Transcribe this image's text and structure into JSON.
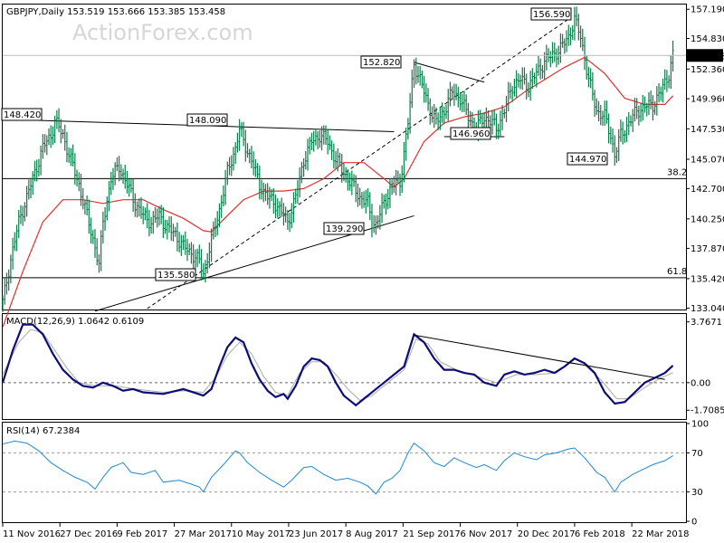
{
  "chart_data": [
    {
      "type": "candlestick",
      "symbol_line": "GBPJPY,Daily  153.519 153.666 153.385 153.458",
      "watermark": "ActionForex.com",
      "ylim": [
        133.0,
        157.5
      ],
      "y_ticks": [
        "157.190",
        "154.830",
        "152.360",
        "149.960",
        "147.530",
        "145.070",
        "142.700",
        "140.250",
        "137.870",
        "135.420",
        "133.040"
      ],
      "last_price": "153.458",
      "x_ticks": [
        "11 Nov 2016",
        "27 Dec 2016",
        "9 Feb 2017",
        "27 Mar 2017",
        "10 May 2017",
        "23 Jun 2017",
        "8 Aug 2017",
        "21 Sep 2017",
        "6 Nov 2017",
        "20 Dec 2017",
        "6 Feb 2018",
        "22 Mar 2018"
      ],
      "annotations": [
        "148.420",
        "148.090",
        "135.580",
        "139.290",
        "152.820",
        "146.960",
        "156.590",
        "144.970"
      ],
      "fib_levels": [
        {
          "label": "38.2",
          "value": 143.5
        },
        {
          "label": "61.8",
          "value": 135.5
        }
      ],
      "close_path": [
        [
          0,
          133.5
        ],
        [
          4,
          137
        ],
        [
          8,
          140
        ],
        [
          12,
          142
        ],
        [
          16,
          144
        ],
        [
          20,
          146
        ],
        [
          24,
          147
        ],
        [
          26,
          148.2
        ],
        [
          30,
          147
        ],
        [
          34,
          145
        ],
        [
          38,
          143
        ],
        [
          42,
          140.5
        ],
        [
          46,
          138
        ],
        [
          48,
          136.5
        ],
        [
          50,
          140
        ],
        [
          54,
          143.5
        ],
        [
          58,
          144.5
        ],
        [
          62,
          143
        ],
        [
          66,
          141.5
        ],
        [
          70,
          140.5
        ],
        [
          74,
          140
        ],
        [
          78,
          140.5
        ],
        [
          82,
          139.5
        ],
        [
          86,
          139
        ],
        [
          90,
          138
        ],
        [
          94,
          137.5
        ],
        [
          98,
          136.8
        ],
        [
          100,
          135.8
        ],
        [
          104,
          138.5
        ],
        [
          108,
          141
        ],
        [
          112,
          144
        ],
        [
          116,
          146
        ],
        [
          118,
          147.5
        ],
        [
          120,
          146.5
        ],
        [
          124,
          145
        ],
        [
          128,
          143
        ],
        [
          132,
          142
        ],
        [
          136,
          141.5
        ],
        [
          140,
          140.5
        ],
        [
          142,
          140
        ],
        [
          146,
          142
        ],
        [
          150,
          145
        ],
        [
          154,
          146.5
        ],
        [
          158,
          147
        ],
        [
          162,
          146.5
        ],
        [
          166,
          145
        ],
        [
          170,
          144
        ],
        [
          174,
          143
        ],
        [
          178,
          142
        ],
        [
          182,
          141.5
        ],
        [
          184,
          140
        ],
        [
          186,
          139.8
        ],
        [
          190,
          141.5
        ],
        [
          194,
          143
        ],
        [
          198,
          143.2
        ],
        [
          202,
          148
        ],
        [
          205,
          152.8
        ],
        [
          208,
          151.5
        ],
        [
          212,
          149.5
        ],
        [
          216,
          148
        ],
        [
          220,
          149
        ],
        [
          224,
          150.5
        ],
        [
          228,
          150
        ],
        [
          232,
          148.5
        ],
        [
          236,
          147.5
        ],
        [
          240,
          148.5
        ],
        [
          244,
          148
        ],
        [
          246,
          147.5
        ],
        [
          250,
          149
        ],
        [
          254,
          151
        ],
        [
          258,
          151.5
        ],
        [
          262,
          151
        ],
        [
          266,
          152
        ],
        [
          270,
          153
        ],
        [
          274,
          153.5
        ],
        [
          278,
          154
        ],
        [
          282,
          155
        ],
        [
          285,
          156.3
        ],
        [
          288,
          155
        ],
        [
          292,
          151.5
        ],
        [
          296,
          149
        ],
        [
          300,
          148.5
        ],
        [
          303,
          147
        ],
        [
          305,
          145.4
        ],
        [
          308,
          147
        ],
        [
          312,
          148
        ],
        [
          316,
          149
        ],
        [
          320,
          149.3
        ],
        [
          324,
          149.5
        ],
        [
          328,
          150.5
        ],
        [
          332,
          152
        ],
        [
          334,
          153.46
        ]
      ],
      "ma_path": [
        [
          0,
          131.5
        ],
        [
          10,
          136
        ],
        [
          20,
          140
        ],
        [
          30,
          141.8
        ],
        [
          40,
          141.8
        ],
        [
          50,
          141.5
        ],
        [
          60,
          141.8
        ],
        [
          70,
          141.8
        ],
        [
          80,
          141
        ],
        [
          90,
          140.3
        ],
        [
          100,
          139.3
        ],
        [
          104,
          139.2
        ],
        [
          110,
          140.2
        ],
        [
          120,
          141.8
        ],
        [
          130,
          142.5
        ],
        [
          140,
          142.5
        ],
        [
          150,
          142.7
        ],
        [
          160,
          143.5
        ],
        [
          170,
          144.8
        ],
        [
          180,
          144.8
        ],
        [
          190,
          143.5
        ],
        [
          195,
          142.8
        ],
        [
          200,
          143.5
        ],
        [
          210,
          146.5
        ],
        [
          220,
          148
        ],
        [
          230,
          148.5
        ],
        [
          240,
          148.8
        ],
        [
          250,
          149.3
        ],
        [
          260,
          150.5
        ],
        [
          270,
          151.5
        ],
        [
          280,
          152.5
        ],
        [
          290,
          153.3
        ],
        [
          300,
          152
        ],
        [
          310,
          150
        ],
        [
          320,
          149.5
        ],
        [
          330,
          149.5
        ],
        [
          334,
          150.2
        ]
      ],
      "trendlines": [
        {
          "from": [
            46,
            132.8
          ],
          "to": [
            205,
            140.5
          ],
          "style": "solid"
        },
        {
          "from": [
            0,
            148.3
          ],
          "to": [
            195,
            147.3
          ],
          "style": "solid"
        },
        {
          "from": [
            205,
            152.9
          ],
          "to": [
            240,
            151.3
          ],
          "style": "solid"
        },
        {
          "from": [
            220,
            146.9
          ],
          "to": [
            250,
            146.9
          ],
          "style": "solid"
        },
        {
          "from": [
            72,
            133
          ],
          "to": [
            282,
            156.4
          ],
          "style": "dashed"
        }
      ]
    },
    {
      "type": "line",
      "title": "MACD(12,26,9) 1.0642 0.6109",
      "ylim": [
        -2.2,
        4.2
      ],
      "y_ticks": [
        "3.7671",
        "0.00",
        "-1.7085"
      ],
      "macd_path": [
        [
          0,
          0
        ],
        [
          5,
          2
        ],
        [
          10,
          3.6
        ],
        [
          15,
          3.6
        ],
        [
          20,
          3.0
        ],
        [
          25,
          1.8
        ],
        [
          30,
          0.8
        ],
        [
          35,
          0.2
        ],
        [
          40,
          -0.2
        ],
        [
          45,
          -0.3
        ],
        [
          50,
          0
        ],
        [
          55,
          -0.2
        ],
        [
          60,
          -0.5
        ],
        [
          65,
          -0.4
        ],
        [
          70,
          -0.6
        ],
        [
          80,
          -0.7
        ],
        [
          90,
          -0.4
        ],
        [
          100,
          -0.8
        ],
        [
          104,
          -0.4
        ],
        [
          108,
          1
        ],
        [
          112,
          2.2
        ],
        [
          116,
          2.8
        ],
        [
          120,
          2.5
        ],
        [
          124,
          1.2
        ],
        [
          128,
          0.2
        ],
        [
          132,
          -0.5
        ],
        [
          136,
          -0.9
        ],
        [
          140,
          -0.7
        ],
        [
          142,
          -1.0
        ],
        [
          146,
          -0.2
        ],
        [
          150,
          1.0
        ],
        [
          154,
          1.5
        ],
        [
          158,
          1.4
        ],
        [
          162,
          1.0
        ],
        [
          166,
          0
        ],
        [
          170,
          -0.8
        ],
        [
          176,
          -1.4
        ],
        [
          180,
          -1.0
        ],
        [
          185,
          -0.5
        ],
        [
          190,
          0
        ],
        [
          195,
          0.5
        ],
        [
          200,
          1
        ],
        [
          205,
          3.0
        ],
        [
          210,
          2.5
        ],
        [
          215,
          1.5
        ],
        [
          220,
          0.8
        ],
        [
          225,
          0.8
        ],
        [
          230,
          0.6
        ],
        [
          235,
          0.5
        ],
        [
          240,
          0
        ],
        [
          246,
          -0.2
        ],
        [
          250,
          0.5
        ],
        [
          255,
          0.7
        ],
        [
          260,
          0.5
        ],
        [
          265,
          0.6
        ],
        [
          270,
          0.8
        ],
        [
          275,
          0.6
        ],
        [
          280,
          1.0
        ],
        [
          285,
          1.5
        ],
        [
          290,
          1.2
        ],
        [
          295,
          0.6
        ],
        [
          300,
          -0.6
        ],
        [
          305,
          -1.3
        ],
        [
          310,
          -1.2
        ],
        [
          315,
          -0.6
        ],
        [
          320,
          0
        ],
        [
          325,
          0.3
        ],
        [
          330,
          0.6
        ],
        [
          334,
          1.06
        ]
      ],
      "signal_path": [
        [
          0,
          0.5
        ],
        [
          8,
          2.5
        ],
        [
          14,
          3.3
        ],
        [
          20,
          3.1
        ],
        [
          26,
          2.0
        ],
        [
          32,
          0.9
        ],
        [
          38,
          0
        ],
        [
          46,
          -0.2
        ],
        [
          56,
          -0.2
        ],
        [
          66,
          -0.4
        ],
        [
          80,
          -0.6
        ],
        [
          90,
          -0.5
        ],
        [
          100,
          -0.6
        ],
        [
          106,
          0.3
        ],
        [
          112,
          1.7
        ],
        [
          118,
          2.5
        ],
        [
          124,
          1.8
        ],
        [
          130,
          0.4
        ],
        [
          136,
          -0.6
        ],
        [
          142,
          -0.8
        ],
        [
          148,
          0.6
        ],
        [
          154,
          1.3
        ],
        [
          160,
          1.3
        ],
        [
          166,
          0.5
        ],
        [
          172,
          -0.4
        ],
        [
          178,
          -1.1
        ],
        [
          184,
          -0.8
        ],
        [
          192,
          0
        ],
        [
          200,
          0.8
        ],
        [
          206,
          2.7
        ],
        [
          212,
          2.4
        ],
        [
          218,
          1.3
        ],
        [
          226,
          0.8
        ],
        [
          236,
          0.4
        ],
        [
          246,
          0
        ],
        [
          256,
          0.5
        ],
        [
          266,
          0.5
        ],
        [
          276,
          0.6
        ],
        [
          282,
          1.2
        ],
        [
          290,
          1.1
        ],
        [
          298,
          0.2
        ],
        [
          306,
          -1.0
        ],
        [
          312,
          -1.0
        ],
        [
          320,
          -0.3
        ],
        [
          328,
          0.3
        ],
        [
          334,
          0.61
        ]
      ],
      "trendline": {
        "from": [
          205,
          2.95
        ],
        "to": [
          330,
          0.2
        ]
      }
    },
    {
      "type": "line",
      "title": "RSI(14) 67.2384",
      "ylim": [
        0,
        100
      ],
      "y_ticks": [
        "100",
        "70",
        "30",
        "0"
      ],
      "rsi_path": [
        [
          0,
          79
        ],
        [
          6,
          82
        ],
        [
          12,
          80
        ],
        [
          18,
          72
        ],
        [
          24,
          60
        ],
        [
          30,
          52
        ],
        [
          36,
          45
        ],
        [
          42,
          40
        ],
        [
          46,
          33
        ],
        [
          50,
          45
        ],
        [
          54,
          55
        ],
        [
          60,
          60
        ],
        [
          64,
          50
        ],
        [
          70,
          48
        ],
        [
          76,
          52
        ],
        [
          80,
          40
        ],
        [
          88,
          42
        ],
        [
          94,
          38
        ],
        [
          98,
          35
        ],
        [
          100,
          30
        ],
        [
          104,
          45
        ],
        [
          110,
          58
        ],
        [
          116,
          72
        ],
        [
          118,
          70
        ],
        [
          122,
          60
        ],
        [
          128,
          50
        ],
        [
          134,
          42
        ],
        [
          140,
          35
        ],
        [
          144,
          42
        ],
        [
          150,
          55
        ],
        [
          154,
          56
        ],
        [
          160,
          48
        ],
        [
          166,
          42
        ],
        [
          172,
          44
        ],
        [
          178,
          40
        ],
        [
          182,
          36
        ],
        [
          186,
          28
        ],
        [
          190,
          40
        ],
        [
          194,
          44
        ],
        [
          198,
          52
        ],
        [
          202,
          70
        ],
        [
          205,
          80
        ],
        [
          210,
          72
        ],
        [
          215,
          60
        ],
        [
          220,
          56
        ],
        [
          225,
          65
        ],
        [
          230,
          60
        ],
        [
          236,
          55
        ],
        [
          240,
          58
        ],
        [
          246,
          52
        ],
        [
          250,
          62
        ],
        [
          255,
          70
        ],
        [
          260,
          66
        ],
        [
          266,
          63
        ],
        [
          270,
          68
        ],
        [
          276,
          70
        ],
        [
          282,
          74
        ],
        [
          285,
          75
        ],
        [
          290,
          65
        ],
        [
          296,
          50
        ],
        [
          300,
          45
        ],
        [
          305,
          30
        ],
        [
          308,
          40
        ],
        [
          314,
          48
        ],
        [
          318,
          52
        ],
        [
          324,
          58
        ],
        [
          330,
          62
        ],
        [
          334,
          67.24
        ]
      ]
    }
  ]
}
